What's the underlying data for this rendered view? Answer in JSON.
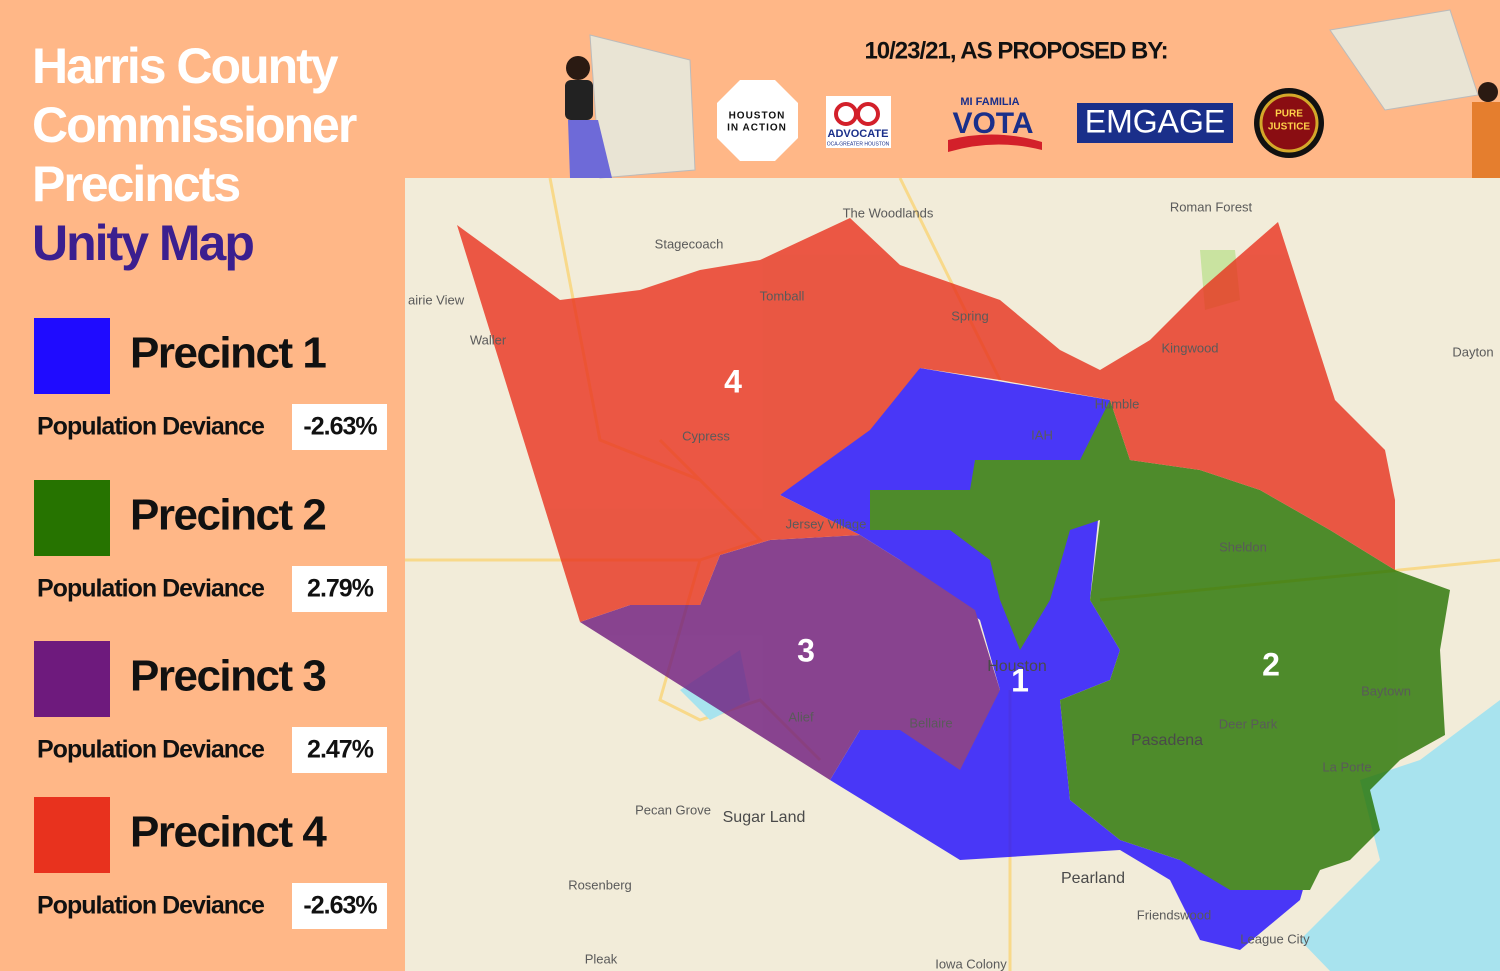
{
  "header": {
    "title_lines": [
      "Harris County",
      "Commissioner",
      "Precincts"
    ],
    "subtitle": "Unity Map",
    "proposed_by": "10/23/21, AS PROPOSED BY:"
  },
  "logos": [
    "HOUSTON",
    "IN ACTION",
    "ADVOCATE",
    "OCA-GREATER HOUSTON",
    "MI FAMILIA",
    "VOTA",
    "EMGAGE",
    "PURE",
    "JUSTICE"
  ],
  "legend": [
    {
      "name": "Precinct 1",
      "color": "#1f0bff",
      "deviance_label": "Population Deviance",
      "deviance": "-2.63%"
    },
    {
      "name": "Precinct 2",
      "color": "#267300",
      "deviance_label": "Population Deviance",
      "deviance": "2.79%"
    },
    {
      "name": "Precinct 3",
      "color": "#6e1a7d",
      "deviance_label": "Population Deviance",
      "deviance": "2.47%"
    },
    {
      "name": "Precinct 4",
      "color": "#e8321e",
      "deviance_label": "Population Deviance",
      "deviance": "-2.63%"
    }
  ],
  "map": {
    "precinct_labels": [
      "1",
      "2",
      "3",
      "4"
    ],
    "places": [
      "The Woodlands",
      "Stagecoach",
      "Roman Forest",
      "airie View",
      "Waller",
      "Tomball",
      "Spring",
      "Kingwood",
      "Dayton",
      "Humble",
      "IAH",
      "Cypress",
      "Jersey Village",
      "Sheldon",
      "Houston",
      "Baytown",
      "Deer Park",
      "Pasadena",
      "La Porte",
      "Alief",
      "Bellaire",
      "Pecan Grove",
      "Sugar Land",
      "Rosenberg",
      "Pearland",
      "Friendswood",
      "League City",
      "Pleak",
      "Iowa Colony"
    ]
  }
}
